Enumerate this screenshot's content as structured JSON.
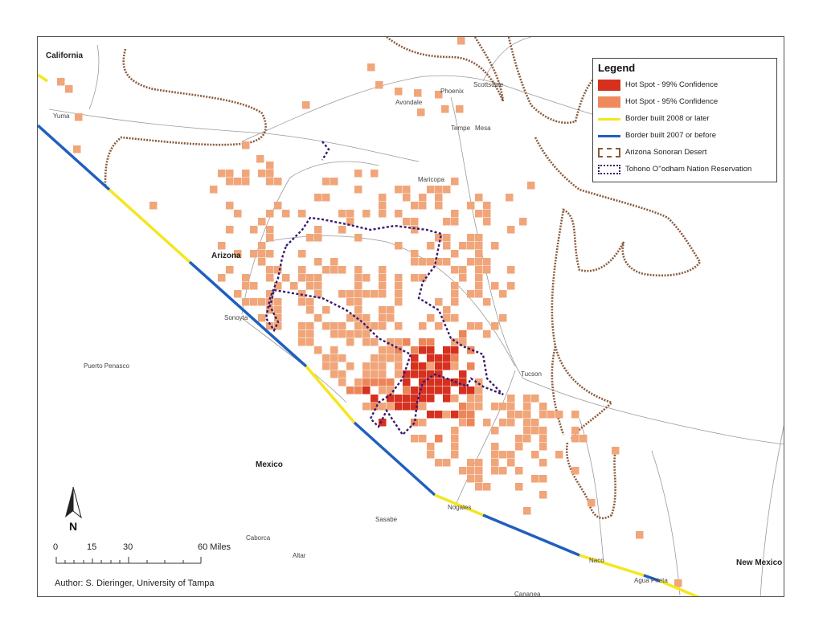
{
  "regions": {
    "california": "California",
    "arizona": "Arizona",
    "mexico": "Mexico",
    "new_mexico": "New Mexico"
  },
  "places": {
    "yuma": "Yuma",
    "phoenix": "Phoenix",
    "scottsdale": "Scottsdale",
    "avondale": "Avondale",
    "tempe": "Tempe",
    "mesa": "Mesa",
    "maricopa": "Maricopa",
    "sonoyta": "Sonoyta",
    "puerto_penasco": "Puerto Penasco",
    "tucson": "Tucson",
    "nogales": "Nogales",
    "sasabe": "Sasabe",
    "caborca": "Caborca",
    "altar": "Altar",
    "naco": "Naco",
    "agua_prieta": "Agua Prieta",
    "cananea": "Cananea"
  },
  "legend": {
    "title": "Legend",
    "items": [
      {
        "label": "Hot Spot - 99% Confidence",
        "kind": "fill",
        "color": "#d6301f"
      },
      {
        "label": "Hot Spot - 95% Confidence",
        "kind": "fill",
        "color": "#ee8a5c"
      },
      {
        "label": "Border built 2008 or later",
        "kind": "line",
        "color": "#f5e61e"
      },
      {
        "label": "Border built 2007 or before",
        "kind": "line",
        "color": "#1f5fbf"
      },
      {
        "label": "Arizona Sonoran Desert",
        "kind": "desert",
        "color": "#8a5a3a"
      },
      {
        "label": "Tohono O''odham Nation Reservation",
        "kind": "reservation",
        "color": "#3a1a6e"
      }
    ]
  },
  "scale_bar": {
    "ticks": [
      "0",
      "15",
      "30",
      "60 Miles"
    ]
  },
  "north": {
    "label": "N"
  },
  "author": "Author: S. Dieringer, University of Tampa",
  "colors": {
    "hot99": "#d6301f",
    "hot95": "#f0a67a",
    "hot95_dark": "#ec8658",
    "border_new": "#f5e61e",
    "border_old": "#1f5fbf",
    "desert": "#8a5a3a",
    "reservation": "#3a1a6e",
    "roads": "#9a9a9a"
  }
}
